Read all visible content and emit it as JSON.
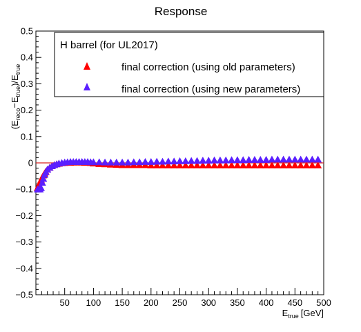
{
  "chart_data": {
    "type": "scatter",
    "title": "Response",
    "xlabel": {
      "main": "E",
      "sub": "true",
      "unit": "[GeV]"
    },
    "ylabel": {
      "p1": "(E",
      "sub1": "reco",
      "p2": "−E",
      "sub2": "true",
      "p3": ")/E",
      "sub3": "true"
    },
    "xlim": [
      0,
      500
    ],
    "ylim": [
      -0.5,
      0.5
    ],
    "x_ticks": [
      50,
      100,
      150,
      200,
      250,
      300,
      350,
      400,
      450,
      500
    ],
    "x_tick_labels": [
      "50",
      "100",
      "150",
      "200",
      "250",
      "300",
      "350",
      "400",
      "450",
      "500"
    ],
    "y_ticks": [
      -0.5,
      -0.4,
      -0.3,
      -0.2,
      -0.1,
      0,
      0.1,
      0.2,
      0.3,
      0.4,
      0.5
    ],
    "y_tick_labels": [
      "−0.5",
      "−0.4",
      "−0.3",
      "−0.2",
      "−0.1",
      "0",
      "0.1",
      "0.2",
      "0.3",
      "0.4",
      "0.5"
    ],
    "reference_line": {
      "y": 0,
      "color": "#d62020"
    },
    "legend": {
      "placement": "top-left",
      "header": "H barrel (for UL2017)"
    },
    "series": [
      {
        "name": "final correction (using old parameters)",
        "color": "#ff0000",
        "marker": "triangle",
        "x": [
          3,
          5,
          7,
          9,
          11,
          13,
          15,
          17,
          20,
          24,
          28,
          32,
          36,
          40,
          45,
          50,
          55,
          60,
          65,
          70,
          75,
          80,
          85,
          90,
          95,
          100,
          110,
          120,
          130,
          140,
          150,
          160,
          170,
          180,
          190,
          200,
          210,
          220,
          230,
          240,
          250,
          260,
          270,
          280,
          290,
          300,
          310,
          320,
          330,
          340,
          350,
          360,
          370,
          380,
          390,
          400,
          410,
          420,
          430,
          440,
          450,
          460,
          470,
          480,
          490
        ],
        "y": [
          -0.095,
          -0.085,
          -0.075,
          -0.065,
          -0.055,
          -0.047,
          -0.04,
          -0.033,
          -0.025,
          -0.018,
          -0.012,
          -0.008,
          -0.005,
          -0.003,
          -0.001,
          0.0,
          0.001,
          0.001,
          0.002,
          0.002,
          0.002,
          0.002,
          0.001,
          0.001,
          0.0,
          -0.002,
          -0.004,
          -0.005,
          -0.006,
          -0.007,
          -0.008,
          -0.008,
          -0.008,
          -0.008,
          -0.008,
          -0.009,
          -0.009,
          -0.009,
          -0.009,
          -0.009,
          -0.009,
          -0.009,
          -0.009,
          -0.009,
          -0.009,
          -0.009,
          -0.009,
          -0.009,
          -0.009,
          -0.009,
          -0.009,
          -0.009,
          -0.009,
          -0.009,
          -0.009,
          -0.009,
          -0.009,
          -0.009,
          -0.009,
          -0.009,
          -0.009,
          -0.009,
          -0.009,
          -0.009,
          -0.009
        ]
      },
      {
        "name": "final correction (using new parameters)",
        "color": "#5a1fff",
        "marker": "triangle",
        "x": [
          3,
          5,
          7,
          9,
          11,
          13,
          15,
          17,
          20,
          24,
          28,
          32,
          36,
          40,
          45,
          50,
          55,
          60,
          65,
          70,
          75,
          80,
          85,
          90,
          95,
          100,
          110,
          120,
          130,
          140,
          150,
          160,
          170,
          180,
          190,
          200,
          210,
          220,
          230,
          240,
          250,
          260,
          270,
          280,
          290,
          300,
          310,
          320,
          330,
          340,
          350,
          360,
          370,
          380,
          390,
          400,
          410,
          420,
          430,
          440,
          450,
          460,
          470,
          480,
          490
        ],
        "y": [
          -0.1,
          -0.1,
          -0.1,
          -0.095,
          -0.075,
          -0.06,
          -0.045,
          -0.035,
          -0.025,
          -0.018,
          -0.012,
          -0.008,
          -0.005,
          -0.002,
          0.0,
          0.002,
          0.003,
          0.004,
          0.004,
          0.004,
          0.004,
          0.004,
          0.004,
          0.004,
          0.003,
          0.003,
          0.003,
          0.002,
          0.002,
          0.002,
          0.002,
          0.002,
          0.003,
          0.003,
          0.004,
          0.004,
          0.005,
          0.005,
          0.006,
          0.006,
          0.007,
          0.007,
          0.008,
          0.008,
          0.009,
          0.009,
          0.01,
          0.01,
          0.01,
          0.011,
          0.011,
          0.011,
          0.012,
          0.012,
          0.012,
          0.012,
          0.013,
          0.013,
          0.013,
          0.013,
          0.013,
          0.013,
          0.013,
          0.013,
          0.013
        ]
      }
    ]
  }
}
